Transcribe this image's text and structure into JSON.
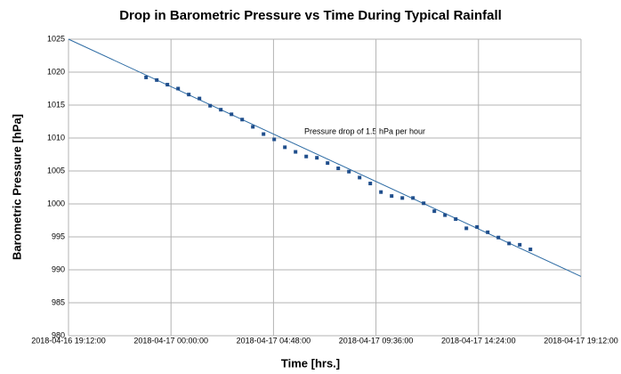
{
  "chart_data": {
    "type": "scatter",
    "title": "Drop in Barometric Pressure vs Time During Typical Rainfall",
    "x_label": "Time [hrs.]",
    "y_label": "Barometric Pressure [hPa]",
    "annotation": "Pressure drop of 1.5 hPa per hour",
    "xlim": [
      "2018-04-16 19:12:00",
      "2018-04-17 19:12:00"
    ],
    "xticks": [
      "2018-04-16 19:12:00",
      "2018-04-17 00:00:00",
      "2018-04-17 04:48:00",
      "2018-04-17 09:36:00",
      "2018-04-17 14:24:00",
      "2018-04-17 19:12:00"
    ],
    "ylim": [
      980,
      1025
    ],
    "yticks": [
      980,
      985,
      990,
      995,
      1000,
      1005,
      1010,
      1015,
      1020,
      1025
    ],
    "grid": true,
    "color": "#1f4e8c",
    "x": [
      "2018-04-16 22:50:00",
      "2018-04-16 23:20:00",
      "2018-04-16 23:50:00",
      "2018-04-17 00:20:00",
      "2018-04-17 00:50:00",
      "2018-04-17 01:20:00",
      "2018-04-17 01:50:00",
      "2018-04-17 02:20:00",
      "2018-04-17 02:50:00",
      "2018-04-17 03:20:00",
      "2018-04-17 03:50:00",
      "2018-04-17 04:20:00",
      "2018-04-17 04:50:00",
      "2018-04-17 05:20:00",
      "2018-04-17 05:50:00",
      "2018-04-17 06:20:00",
      "2018-04-17 06:50:00",
      "2018-04-17 07:20:00",
      "2018-04-17 07:50:00",
      "2018-04-17 08:20:00",
      "2018-04-17 08:50:00",
      "2018-04-17 09:20:00",
      "2018-04-17 09:50:00",
      "2018-04-17 10:20:00",
      "2018-04-17 10:50:00",
      "2018-04-17 11:20:00",
      "2018-04-17 11:50:00",
      "2018-04-17 12:20:00",
      "2018-04-17 12:50:00",
      "2018-04-17 13:20:00",
      "2018-04-17 13:50:00",
      "2018-04-17 14:20:00",
      "2018-04-17 14:50:00",
      "2018-04-17 15:20:00",
      "2018-04-17 15:50:00",
      "2018-04-17 16:20:00",
      "2018-04-17 16:50:00"
    ],
    "values": [
      1019.2,
      1018.8,
      1018.1,
      1017.5,
      1016.6,
      1016.0,
      1014.9,
      1014.3,
      1013.6,
      1012.8,
      1011.7,
      1010.6,
      1009.8,
      1008.6,
      1007.9,
      1007.2,
      1007.0,
      1006.2,
      1005.4,
      1004.9,
      1004.0,
      1003.1,
      1001.8,
      1001.2,
      1000.9,
      1000.9,
      1000.1,
      998.9,
      998.3,
      997.7,
      996.3,
      996.5,
      995.7,
      994.9,
      994.0,
      993.8,
      993.1
    ],
    "trendline": {
      "color": "#2e6ca4",
      "x": [
        "2018-04-16 19:12:00",
        "2018-04-17 19:12:00"
      ],
      "values": [
        1025,
        989
      ]
    }
  }
}
